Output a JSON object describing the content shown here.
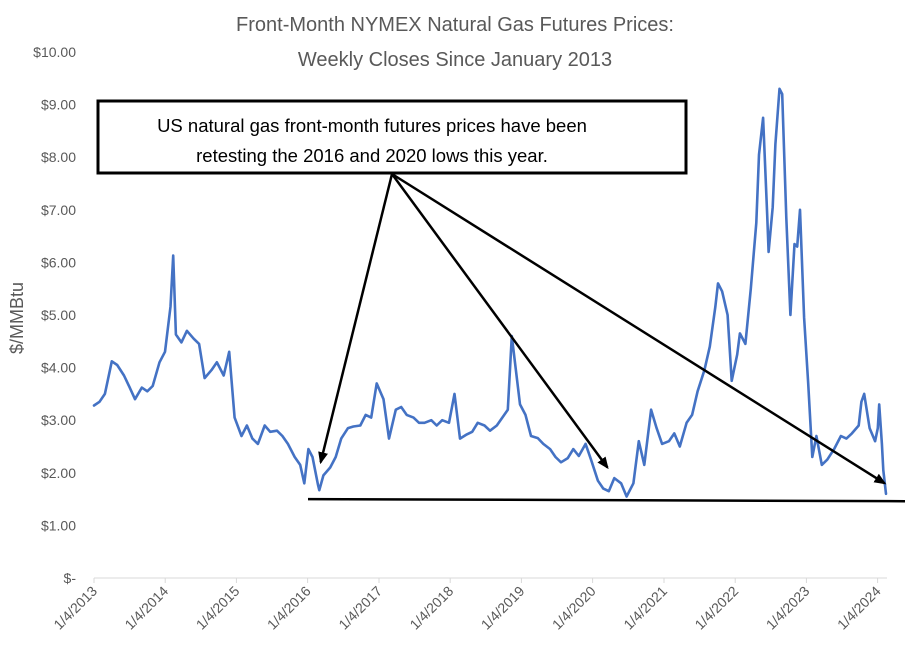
{
  "chart_data": {
    "type": "line",
    "title": [
      "Front-Month NYMEX Natural Gas Futures Prices:",
      "Weekly Closes Since January 2013"
    ],
    "ylabel": "$/MMBtu",
    "xlabel": "",
    "ylim": [
      0,
      10
    ],
    "y_ticks": [
      0,
      1,
      2,
      3,
      4,
      5,
      6,
      7,
      8,
      9,
      10
    ],
    "y_tick_labels": [
      "$-",
      "$1.00",
      "$2.00",
      "$3.00",
      "$4.00",
      "$5.00",
      "$6.00",
      "$7.00",
      "$8.00",
      "$9.00",
      "$10.00"
    ],
    "x_tick_labels": [
      "1/4/2013",
      "1/4/2014",
      "1/4/2015",
      "1/4/2016",
      "1/4/2017",
      "1/4/2018",
      "1/4/2019",
      "1/4/2020",
      "1/4/2021",
      "1/4/2022",
      "1/4/2023",
      "1/4/2024"
    ],
    "grid": false,
    "series_color": "#4472C4",
    "series": [
      {
        "values": [
          [
            "2013-01-04",
            3.28
          ],
          [
            "2013-02-01",
            3.35
          ],
          [
            "2013-03-01",
            3.5
          ],
          [
            "2013-04-05",
            4.12
          ],
          [
            "2013-05-03",
            4.05
          ],
          [
            "2013-06-07",
            3.85
          ],
          [
            "2013-07-05",
            3.63
          ],
          [
            "2013-08-02",
            3.4
          ],
          [
            "2013-09-06",
            3.62
          ],
          [
            "2013-10-04",
            3.55
          ],
          [
            "2013-11-01",
            3.65
          ],
          [
            "2013-12-06",
            4.1
          ],
          [
            "2014-01-03",
            4.3
          ],
          [
            "2014-01-31",
            5.16
          ],
          [
            "2014-02-14",
            6.13
          ],
          [
            "2014-02-28",
            4.63
          ],
          [
            "2014-03-28",
            4.48
          ],
          [
            "2014-04-25",
            4.7
          ],
          [
            "2014-05-30",
            4.55
          ],
          [
            "2014-06-27",
            4.45
          ],
          [
            "2014-07-25",
            3.8
          ],
          [
            "2014-08-29",
            3.95
          ],
          [
            "2014-09-26",
            4.1
          ],
          [
            "2014-10-31",
            3.85
          ],
          [
            "2014-11-28",
            4.3
          ],
          [
            "2014-12-26",
            3.05
          ],
          [
            "2015-01-30",
            2.7
          ],
          [
            "2015-02-27",
            2.9
          ],
          [
            "2015-03-27",
            2.65
          ],
          [
            "2015-04-24",
            2.55
          ],
          [
            "2015-05-29",
            2.9
          ],
          [
            "2015-06-26",
            2.78
          ],
          [
            "2015-07-31",
            2.8
          ],
          [
            "2015-08-28",
            2.7
          ],
          [
            "2015-09-25",
            2.55
          ],
          [
            "2015-10-30",
            2.3
          ],
          [
            "2015-11-27",
            2.15
          ],
          [
            "2015-12-18",
            1.8
          ],
          [
            "2016-01-08",
            2.45
          ],
          [
            "2016-01-29",
            2.3
          ],
          [
            "2016-02-26",
            1.78
          ],
          [
            "2016-03-04",
            1.67
          ],
          [
            "2016-03-25",
            1.95
          ],
          [
            "2016-04-29",
            2.1
          ],
          [
            "2016-05-27",
            2.3
          ],
          [
            "2016-06-24",
            2.65
          ],
          [
            "2016-07-29",
            2.85
          ],
          [
            "2016-08-26",
            2.88
          ],
          [
            "2016-09-30",
            2.9
          ],
          [
            "2016-10-28",
            3.1
          ],
          [
            "2016-11-25",
            3.05
          ],
          [
            "2016-12-23",
            3.7
          ],
          [
            "2017-01-27",
            3.4
          ],
          [
            "2017-02-24",
            2.65
          ],
          [
            "2017-03-31",
            3.2
          ],
          [
            "2017-04-28",
            3.25
          ],
          [
            "2017-05-26",
            3.1
          ],
          [
            "2017-06-30",
            3.05
          ],
          [
            "2017-07-28",
            2.95
          ],
          [
            "2017-08-25",
            2.95
          ],
          [
            "2017-09-29",
            3.0
          ],
          [
            "2017-10-27",
            2.9
          ],
          [
            "2017-11-24",
            3.0
          ],
          [
            "2017-12-29",
            2.95
          ],
          [
            "2018-01-26",
            3.5
          ],
          [
            "2018-02-23",
            2.65
          ],
          [
            "2018-03-30",
            2.73
          ],
          [
            "2018-04-27",
            2.78
          ],
          [
            "2018-05-25",
            2.95
          ],
          [
            "2018-06-29",
            2.9
          ],
          [
            "2018-07-27",
            2.8
          ],
          [
            "2018-08-31",
            2.9
          ],
          [
            "2018-09-28",
            3.05
          ],
          [
            "2018-10-26",
            3.2
          ],
          [
            "2018-11-16",
            4.6
          ],
          [
            "2018-12-28",
            3.3
          ],
          [
            "2019-01-25",
            3.1
          ],
          [
            "2019-02-22",
            2.7
          ],
          [
            "2019-03-29",
            2.66
          ],
          [
            "2019-04-26",
            2.55
          ],
          [
            "2019-05-31",
            2.45
          ],
          [
            "2019-06-28",
            2.3
          ],
          [
            "2019-07-26",
            2.2
          ],
          [
            "2019-08-30",
            2.28
          ],
          [
            "2019-09-27",
            2.45
          ],
          [
            "2019-10-25",
            2.32
          ],
          [
            "2019-11-29",
            2.55
          ],
          [
            "2019-12-27",
            2.25
          ],
          [
            "2020-01-31",
            1.85
          ],
          [
            "2020-02-28",
            1.7
          ],
          [
            "2020-03-27",
            1.65
          ],
          [
            "2020-04-24",
            1.9
          ],
          [
            "2020-05-29",
            1.8
          ],
          [
            "2020-06-26",
            1.55
          ],
          [
            "2020-07-31",
            1.8
          ],
          [
            "2020-08-28",
            2.6
          ],
          [
            "2020-09-25",
            2.15
          ],
          [
            "2020-10-30",
            3.2
          ],
          [
            "2020-11-27",
            2.85
          ],
          [
            "2020-12-25",
            2.55
          ],
          [
            "2021-01-29",
            2.6
          ],
          [
            "2021-02-26",
            2.75
          ],
          [
            "2021-03-26",
            2.5
          ],
          [
            "2021-04-30",
            2.95
          ],
          [
            "2021-05-28",
            3.1
          ],
          [
            "2021-06-25",
            3.55
          ],
          [
            "2021-07-30",
            3.95
          ],
          [
            "2021-08-27",
            4.4
          ],
          [
            "2021-09-24",
            5.15
          ],
          [
            "2021-10-08",
            5.6
          ],
          [
            "2021-10-29",
            5.45
          ],
          [
            "2021-11-26",
            5.0
          ],
          [
            "2021-12-17",
            3.75
          ],
          [
            "2022-01-14",
            4.25
          ],
          [
            "2022-01-28",
            4.65
          ],
          [
            "2022-02-25",
            4.45
          ],
          [
            "2022-03-25",
            5.5
          ],
          [
            "2022-04-22",
            6.75
          ],
          [
            "2022-05-06",
            8.05
          ],
          [
            "2022-05-27",
            8.75
          ],
          [
            "2022-06-17",
            6.9
          ],
          [
            "2022-06-24",
            6.2
          ],
          [
            "2022-07-15",
            7.05
          ],
          [
            "2022-07-29",
            8.25
          ],
          [
            "2022-08-19",
            9.3
          ],
          [
            "2022-09-02",
            9.2
          ],
          [
            "2022-09-23",
            6.85
          ],
          [
            "2022-10-14",
            5.0
          ],
          [
            "2022-11-04",
            6.35
          ],
          [
            "2022-11-18",
            6.3
          ],
          [
            "2022-12-02",
            7.0
          ],
          [
            "2022-12-23",
            4.95
          ],
          [
            "2023-01-13",
            3.7
          ],
          [
            "2023-02-03",
            2.3
          ],
          [
            "2023-02-24",
            2.7
          ],
          [
            "2023-03-24",
            2.15
          ],
          [
            "2023-04-21",
            2.25
          ],
          [
            "2023-05-26",
            2.45
          ],
          [
            "2023-06-30",
            2.7
          ],
          [
            "2023-07-28",
            2.65
          ],
          [
            "2023-08-25",
            2.75
          ],
          [
            "2023-09-29",
            2.9
          ],
          [
            "2023-10-13",
            3.35
          ],
          [
            "2023-10-27",
            3.5
          ],
          [
            "2023-11-24",
            2.85
          ],
          [
            "2023-12-22",
            2.6
          ],
          [
            "2024-01-05",
            2.85
          ],
          [
            "2024-01-12",
            3.3
          ],
          [
            "2024-01-26",
            2.55
          ],
          [
            "2024-02-02",
            2.05
          ],
          [
            "2024-02-16",
            1.6
          ]
        ]
      }
    ],
    "annotation": {
      "lines": [
        "US natural gas front-month futures prices have been",
        "retesting the 2016 and 2020 lows this year."
      ],
      "arrow_targets": [
        [
          "2016-03-11",
          2.2
        ],
        [
          "2020-03-20",
          2.1
        ],
        [
          "2024-02-09",
          1.8
        ]
      ],
      "support_line": [
        [
          "2016-01-01",
          1.5
        ],
        [
          "2024-03-15",
          1.46
        ]
      ]
    }
  }
}
